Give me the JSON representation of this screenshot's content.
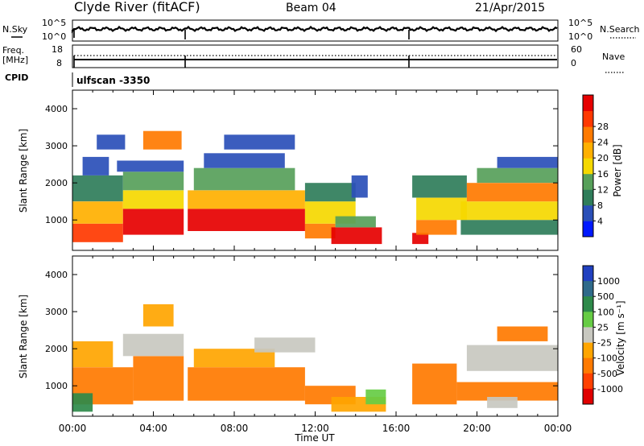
{
  "header": {
    "station": "Clyde River (fitACF)",
    "beam": "Beam 04",
    "date": "21/Apr/2015"
  },
  "strip_panels": {
    "nsky_label": "N.Sky",
    "nsky_ticks": [
      "10^5",
      "10^0"
    ],
    "nsearch_label": "N.Search",
    "nsearch_ticks": [
      "10^5",
      "10^0"
    ],
    "freq_label_line1": "Freq.",
    "freq_label_line2": "[MHz]",
    "freq_ticks": [
      "18",
      "8"
    ],
    "nave_label": "Nave",
    "nave_ticks": [
      "60",
      "0"
    ],
    "cpid_label": "CPID",
    "cpid_value": "ulfscan -3350"
  },
  "chart_data": [
    {
      "type": "heatmap",
      "name": "power-panel",
      "title": "",
      "xlabel": "Time UT",
      "ylabel": "Slant Range [km]",
      "xlim": [
        0,
        24
      ],
      "ylim": [
        180,
        4500
      ],
      "y_ticks": [
        "1000",
        "2000",
        "3000",
        "4000"
      ],
      "colorbar": {
        "label": "Power [dB]",
        "ticks": [
          "4",
          "8",
          "12",
          "16",
          "20",
          "24",
          "28"
        ],
        "range": [
          0,
          30
        ],
        "colors": [
          "#0019ff",
          "#2a4fb8",
          "#2f7d5a",
          "#57a05a",
          "#f5d800",
          "#ffb000",
          "#ff7a00",
          "#ff3800",
          "#e60000"
        ]
      },
      "bands": [
        {
          "t0": 0.0,
          "t1": 2.5,
          "r0": 400,
          "r1": 900,
          "value": 26
        },
        {
          "t0": 0.0,
          "t1": 2.5,
          "r0": 900,
          "r1": 1500,
          "value": 18
        },
        {
          "t0": 0.0,
          "t1": 2.5,
          "r0": 1500,
          "r1": 2200,
          "value": 8
        },
        {
          "t0": 0.5,
          "t1": 1.8,
          "r0": 2200,
          "r1": 2700,
          "value": 6
        },
        {
          "t0": 2.5,
          "t1": 5.5,
          "r0": 600,
          "r1": 1300,
          "value": 28
        },
        {
          "t0": 2.5,
          "t1": 5.5,
          "r0": 1300,
          "r1": 1800,
          "value": 16
        },
        {
          "t0": 2.5,
          "t1": 5.5,
          "r0": 1800,
          "r1": 2300,
          "value": 10
        },
        {
          "t0": 2.2,
          "t1": 5.5,
          "r0": 2300,
          "r1": 2600,
          "value": 6
        },
        {
          "t0": 3.5,
          "t1": 5.4,
          "r0": 2900,
          "r1": 3400,
          "value": 20
        },
        {
          "t0": 1.2,
          "t1": 2.6,
          "r0": 2900,
          "r1": 3300,
          "value": 6
        },
        {
          "t0": 5.7,
          "t1": 11.5,
          "r0": 700,
          "r1": 1300,
          "value": 28
        },
        {
          "t0": 5.7,
          "t1": 11.5,
          "r0": 1300,
          "r1": 1800,
          "value": 18
        },
        {
          "t0": 6.0,
          "t1": 11.0,
          "r0": 1800,
          "r1": 2400,
          "value": 10
        },
        {
          "t0": 6.5,
          "t1": 10.5,
          "r0": 2400,
          "r1": 2800,
          "value": 6
        },
        {
          "t0": 7.5,
          "t1": 11.0,
          "r0": 2900,
          "r1": 3300,
          "value": 5
        },
        {
          "t0": 11.5,
          "t1": 13.0,
          "r0": 500,
          "r1": 900,
          "value": 22
        },
        {
          "t0": 11.5,
          "t1": 14.0,
          "r0": 900,
          "r1": 1500,
          "value": 14
        },
        {
          "t0": 11.5,
          "t1": 14.0,
          "r0": 1500,
          "r1": 2000,
          "value": 8
        },
        {
          "t0": 12.8,
          "t1": 15.3,
          "r0": 350,
          "r1": 800,
          "value": 29
        },
        {
          "t0": 13.0,
          "t1": 15.0,
          "r0": 800,
          "r1": 1100,
          "value": 12
        },
        {
          "t0": 13.8,
          "t1": 14.6,
          "r0": 1600,
          "r1": 2200,
          "value": 6
        },
        {
          "t0": 16.8,
          "t1": 17.6,
          "r0": 350,
          "r1": 650,
          "value": 28
        },
        {
          "t0": 17.0,
          "t1": 19.0,
          "r0": 600,
          "r1": 1000,
          "value": 20
        },
        {
          "t0": 17.0,
          "t1": 19.5,
          "r0": 1000,
          "r1": 1600,
          "value": 14
        },
        {
          "t0": 16.8,
          "t1": 19.5,
          "r0": 1600,
          "r1": 2200,
          "value": 7
        },
        {
          "t0": 19.2,
          "t1": 24.0,
          "r0": 600,
          "r1": 1000,
          "value": 8
        },
        {
          "t0": 19.2,
          "t1": 24.0,
          "r0": 1000,
          "r1": 1500,
          "value": 16
        },
        {
          "t0": 19.5,
          "t1": 24.0,
          "r0": 1500,
          "r1": 2000,
          "value": 22
        },
        {
          "t0": 20.0,
          "t1": 24.0,
          "r0": 2000,
          "r1": 2400,
          "value": 10
        },
        {
          "t0": 21.0,
          "t1": 24.0,
          "r0": 2400,
          "r1": 2700,
          "value": 6
        }
      ]
    },
    {
      "type": "heatmap",
      "name": "velocity-panel",
      "title": "",
      "xlabel": "Time UT",
      "ylabel": "Slant Range [km]",
      "xlim": [
        0,
        24
      ],
      "ylim": [
        180,
        4500
      ],
      "x_ticks": [
        "00:00",
        "04:00",
        "08:00",
        "12:00",
        "16:00",
        "20:00",
        "00:00"
      ],
      "y_ticks": [
        "1000",
        "2000",
        "3000",
        "4000"
      ],
      "colorbar": {
        "label": "Velocity [m s⁻¹]",
        "ticks": [
          "1000",
          "500",
          "100",
          "25",
          "-25",
          "-100",
          "-500",
          "-1000"
        ],
        "colors": [
          "#2040c0",
          "#2f6a8a",
          "#2e8a4a",
          "#66cc44",
          "#c8c8c0",
          "#ffa500",
          "#ff7a00",
          "#ff4000",
          "#e00000"
        ]
      },
      "bands": [
        {
          "t0": 0.0,
          "t1": 3.0,
          "r0": 500,
          "r1": 1500,
          "value": -200
        },
        {
          "t0": 0.0,
          "t1": 2.0,
          "r0": 1500,
          "r1": 2200,
          "value": -80
        },
        {
          "t0": 0.0,
          "t1": 1.0,
          "r0": 300,
          "r1": 800,
          "value": 300
        },
        {
          "t0": 2.5,
          "t1": 5.5,
          "r0": 1800,
          "r1": 2400,
          "value": 0
        },
        {
          "t0": 3.0,
          "t1": 5.5,
          "r0": 600,
          "r1": 1800,
          "value": -300
        },
        {
          "t0": 3.5,
          "t1": 5.0,
          "r0": 2600,
          "r1": 3200,
          "value": -90
        },
        {
          "t0": 5.7,
          "t1": 11.5,
          "r0": 600,
          "r1": 1500,
          "value": -400
        },
        {
          "t0": 6.0,
          "t1": 10.0,
          "r0": 1500,
          "r1": 2000,
          "value": -80
        },
        {
          "t0": 9.0,
          "t1": 12.0,
          "r0": 1900,
          "r1": 2300,
          "value": 0
        },
        {
          "t0": 11.5,
          "t1": 14.0,
          "r0": 500,
          "r1": 1000,
          "value": -120
        },
        {
          "t0": 12.8,
          "t1": 15.5,
          "r0": 300,
          "r1": 700,
          "value": -60
        },
        {
          "t0": 14.5,
          "t1": 15.5,
          "r0": 500,
          "r1": 900,
          "value": 60
        },
        {
          "t0": 16.8,
          "t1": 19.0,
          "r0": 500,
          "r1": 1600,
          "value": -300
        },
        {
          "t0": 19.0,
          "t1": 24.0,
          "r0": 600,
          "r1": 1100,
          "value": -150
        },
        {
          "t0": 19.5,
          "t1": 24.0,
          "r0": 1400,
          "r1": 2100,
          "value": 0
        },
        {
          "t0": 21.0,
          "t1": 23.5,
          "r0": 2200,
          "r1": 2600,
          "value": -120
        },
        {
          "t0": 20.5,
          "t1": 22.0,
          "r0": 400,
          "r1": 700,
          "value": 10
        }
      ]
    }
  ]
}
